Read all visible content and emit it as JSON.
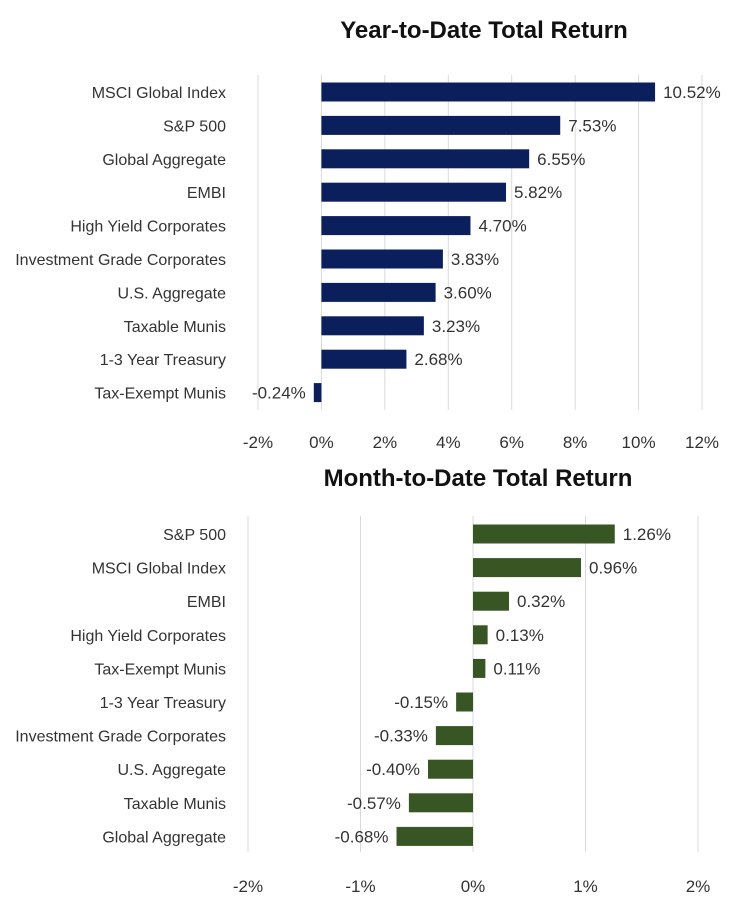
{
  "chart_data": [
    {
      "type": "bar",
      "orientation": "horizontal",
      "title": "Year-to-Date Total Return",
      "categories": [
        "MSCI Global Index",
        "S&P 500",
        "Global Aggregate",
        "EMBI",
        "High Yield Corporates",
        "Investment Grade Corporates",
        "U.S. Aggregate",
        "Taxable Munis",
        "1-3 Year Treasury",
        "Tax-Exempt Munis"
      ],
      "values": [
        10.52,
        7.53,
        6.55,
        5.82,
        4.7,
        3.83,
        3.6,
        3.23,
        2.68,
        -0.24
      ],
      "value_labels": [
        "10.52%",
        "7.53%",
        "6.55%",
        "5.82%",
        "4.70%",
        "3.83%",
        "3.60%",
        "3.23%",
        "2.68%",
        "-0.24%"
      ],
      "xlim": [
        -2,
        12
      ],
      "ticks": [
        -2,
        0,
        2,
        4,
        6,
        8,
        10,
        12
      ],
      "tick_labels": [
        "-2%",
        "0%",
        "2%",
        "4%",
        "6%",
        "8%",
        "10%",
        "12%"
      ],
      "grid": true,
      "color": "#0b1f5c"
    },
    {
      "type": "bar",
      "orientation": "horizontal",
      "title": "Month-to-Date Total Return",
      "categories": [
        "S&P 500",
        "MSCI Global Index",
        "EMBI",
        "High Yield Corporates",
        "Tax-Exempt Munis",
        "1-3 Year Treasury",
        "Investment Grade Corporates",
        "U.S. Aggregate",
        "Taxable Munis",
        "Global Aggregate"
      ],
      "values": [
        1.26,
        0.96,
        0.32,
        0.13,
        0.11,
        -0.15,
        -0.33,
        -0.4,
        -0.57,
        -0.68
      ],
      "value_labels": [
        "1.26%",
        "0.96%",
        "0.32%",
        "0.13%",
        "0.11%",
        "-0.15%",
        "-0.33%",
        "-0.40%",
        "-0.57%",
        "-0.68%"
      ],
      "xlim": [
        -2,
        2
      ],
      "ticks": [
        -2,
        -1,
        0,
        1,
        2
      ],
      "tick_labels": [
        "-2%",
        "-1%",
        "0%",
        "1%",
        "2%"
      ],
      "grid": true,
      "color": "#375623"
    }
  ]
}
